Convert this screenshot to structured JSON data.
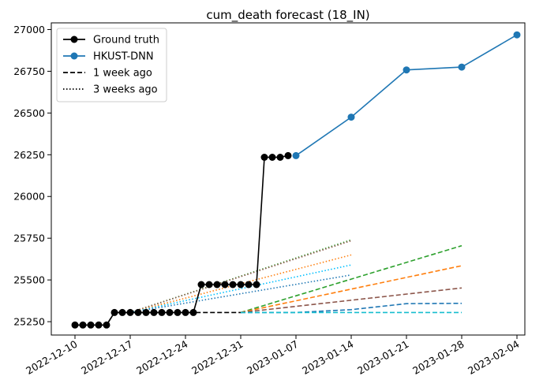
{
  "chart_data": {
    "type": "line",
    "title": "cum_death forecast (18_IN)",
    "xlabel": "",
    "ylabel": "",
    "x_tick_labels": [
      "2022-12-10",
      "2022-12-17",
      "2022-12-24",
      "2022-12-31",
      "2023-01-07",
      "2023-01-14",
      "2023-01-21",
      "2023-01-28",
      "2023-02-04"
    ],
    "x_range": [
      "2022-12-07",
      "2023-02-05"
    ],
    "y_ticks": [
      25250,
      25500,
      25750,
      26000,
      26250,
      26500,
      26750,
      27000
    ],
    "y_tick_labels": [
      "25250",
      "25500",
      "25750",
      "26000",
      "26250",
      "26500",
      "26750",
      "27000"
    ],
    "y_range": [
      25170,
      27040
    ],
    "grid": false,
    "legend_position": "top-left",
    "legend": [
      {
        "label": "Ground truth",
        "style": "solid-marker",
        "color": "#000000"
      },
      {
        "label": "HKUST-DNN",
        "style": "solid-marker",
        "color": "#1f77b4"
      },
      {
        "label": "1 week ago",
        "style": "dashed",
        "color": "#000000"
      },
      {
        "label": "3 weeks ago",
        "style": "dotted",
        "color": "#000000"
      }
    ],
    "series": [
      {
        "name": "Ground truth",
        "color": "#000000",
        "style": "solid-marker",
        "points": [
          [
            "2022-12-10",
            25230
          ],
          [
            "2022-12-11",
            25230
          ],
          [
            "2022-12-12",
            25230
          ],
          [
            "2022-12-13",
            25230
          ],
          [
            "2022-12-14",
            25230
          ],
          [
            "2022-12-15",
            25305
          ],
          [
            "2022-12-16",
            25305
          ],
          [
            "2022-12-17",
            25305
          ],
          [
            "2022-12-18",
            25305
          ],
          [
            "2022-12-19",
            25305
          ],
          [
            "2022-12-20",
            25305
          ],
          [
            "2022-12-21",
            25305
          ],
          [
            "2022-12-22",
            25305
          ],
          [
            "2022-12-23",
            25305
          ],
          [
            "2022-12-24",
            25305
          ],
          [
            "2022-12-25",
            25305
          ],
          [
            "2022-12-26",
            25472
          ],
          [
            "2022-12-27",
            25472
          ],
          [
            "2022-12-28",
            25472
          ],
          [
            "2022-12-29",
            25472
          ],
          [
            "2022-12-30",
            25472
          ],
          [
            "2022-12-31",
            25472
          ],
          [
            "2023-01-01",
            25472
          ],
          [
            "2023-01-02",
            25472
          ],
          [
            "2023-01-03",
            26235
          ],
          [
            "2023-01-04",
            26235
          ],
          [
            "2023-01-05",
            26235
          ],
          [
            "2023-01-06",
            26245
          ]
        ]
      },
      {
        "name": "HKUST-DNN",
        "color": "#1f77b4",
        "style": "solid-marker",
        "points": [
          [
            "2023-01-07",
            26245
          ],
          [
            "2023-01-14",
            26475
          ],
          [
            "2023-01-21",
            26758
          ],
          [
            "2023-01-28",
            26775
          ],
          [
            "2023-02-04",
            26968
          ]
        ]
      },
      {
        "color": "#000000",
        "style": "dashed",
        "points": [
          [
            "2022-12-10",
            25230
          ],
          [
            "2022-12-14",
            25230
          ],
          [
            "2022-12-15",
            25305
          ],
          [
            "2022-12-31",
            25305
          ]
        ]
      },
      {
        "color": "#2ca02c",
        "style": "dashed",
        "points": [
          [
            "2022-12-31",
            25305
          ],
          [
            "2023-01-28",
            25705
          ]
        ]
      },
      {
        "color": "#ff7f0e",
        "style": "dashed",
        "points": [
          [
            "2022-12-31",
            25305
          ],
          [
            "2023-01-28",
            25585
          ]
        ]
      },
      {
        "color": "#8c564b",
        "style": "dashed",
        "points": [
          [
            "2022-12-31",
            25305
          ],
          [
            "2023-01-28",
            25452
          ]
        ]
      },
      {
        "color": "#1f77b4",
        "style": "dashed",
        "points": [
          [
            "2022-12-31",
            25305
          ],
          [
            "2023-01-07",
            25305
          ],
          [
            "2023-01-14",
            25322
          ],
          [
            "2023-01-21",
            25358
          ],
          [
            "2023-01-28",
            25360
          ]
        ]
      },
      {
        "color": "#17becf",
        "style": "dashed",
        "points": [
          [
            "2022-12-31",
            25305
          ],
          [
            "2023-01-28",
            25305
          ]
        ]
      },
      {
        "color": "#2ca02c",
        "style": "dotted",
        "points": [
          [
            "2022-12-17",
            25305
          ],
          [
            "2023-01-14",
            25740
          ]
        ]
      },
      {
        "color": "#8c564b",
        "style": "dotted",
        "points": [
          [
            "2022-12-17",
            25305
          ],
          [
            "2023-01-14",
            25735
          ]
        ]
      },
      {
        "color": "#ff7f0e",
        "style": "dotted",
        "points": [
          [
            "2022-12-17",
            25305
          ],
          [
            "2023-01-14",
            25650
          ]
        ]
      },
      {
        "color": "#00bfff",
        "style": "dotted",
        "points": [
          [
            "2022-12-17",
            25305
          ],
          [
            "2023-01-14",
            25590
          ]
        ]
      },
      {
        "color": "#1f77b4",
        "style": "dotted",
        "points": [
          [
            "2022-12-17",
            25305
          ],
          [
            "2023-01-14",
            25530
          ]
        ]
      }
    ]
  }
}
